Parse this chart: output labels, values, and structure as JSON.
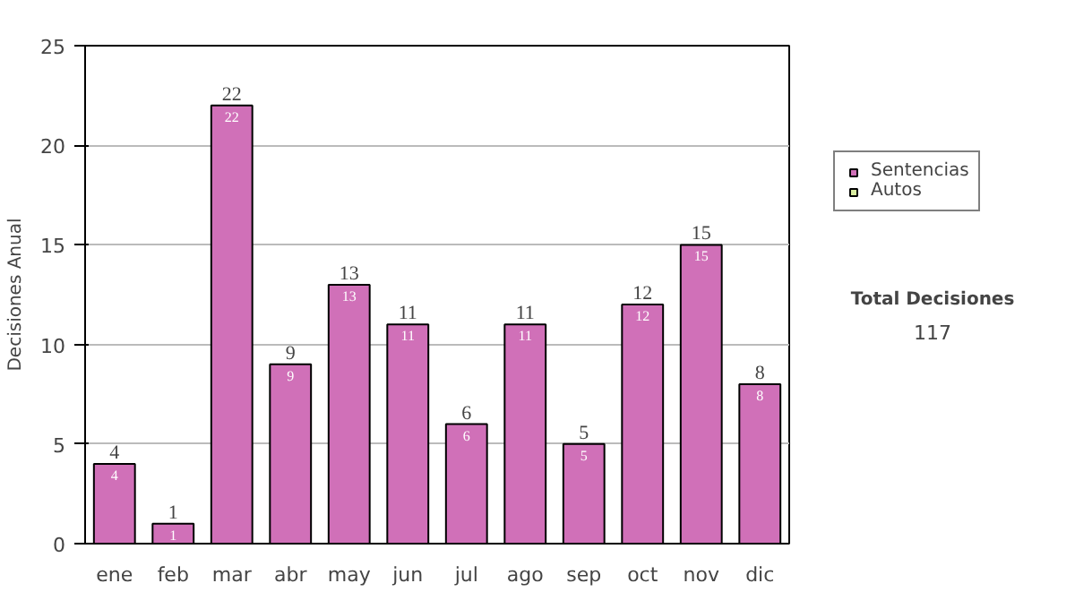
{
  "chart_data": {
    "type": "bar",
    "stacked": true,
    "ylabel": "Decisiones Anual",
    "categories": [
      "ene",
      "feb",
      "mar",
      "abr",
      "may",
      "jun",
      "jul",
      "ago",
      "sep",
      "oct",
      "nov",
      "dic"
    ],
    "series": [
      {
        "name": "Sentencias",
        "color": "#d070b8",
        "values": [
          4,
          1,
          22,
          9,
          13,
          11,
          6,
          11,
          5,
          12,
          15,
          8
        ]
      },
      {
        "name": "Autos",
        "color": "#d8eca0",
        "values": [
          null,
          null,
          null,
          null,
          null,
          null,
          null,
          null,
          null,
          null,
          null,
          null
        ]
      }
    ],
    "totals": [
      "4",
      "1",
      "22",
      "9",
      "13",
      "11",
      "6",
      "11",
      "5",
      "12",
      "15",
      "8"
    ],
    "data_labels": true,
    "ylim": [
      0,
      25
    ],
    "yticks": [
      0,
      5,
      10,
      15,
      20,
      25
    ],
    "grid": "y",
    "legend": "right",
    "annotations": [
      "Total Decisiones",
      "117"
    ]
  }
}
